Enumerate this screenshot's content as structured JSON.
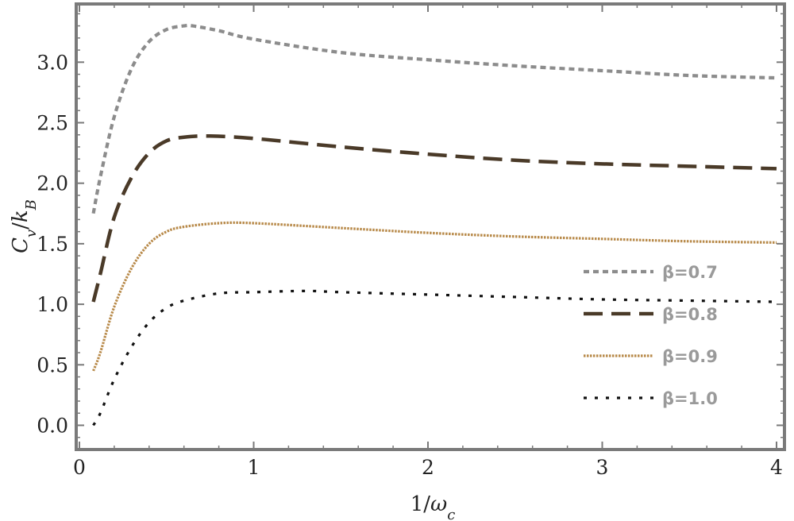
{
  "chart_data": {
    "type": "line",
    "xlabel": "1/ω_c",
    "ylabel": "C_v/k_B",
    "xlim": [
      0,
      4
    ],
    "ylim": [
      -0.15,
      3.45
    ],
    "x_ticks": [
      "0",
      "1",
      "2",
      "3",
      "4"
    ],
    "y_ticks": [
      "0.0",
      "0.5",
      "1.0",
      "1.5",
      "2.0",
      "2.5",
      "3.0"
    ],
    "grid": false,
    "legend_position": "right-center",
    "series": [
      {
        "name": "β=0.7",
        "color": "#8c8c8c",
        "dash": "short-dash",
        "x": [
          0.08,
          0.12,
          0.2,
          0.3,
          0.4,
          0.5,
          0.6,
          0.65,
          0.8,
          1.0,
          1.5,
          2.0,
          2.5,
          3.0,
          3.5,
          4.0
        ],
        "y": [
          1.75,
          2.05,
          2.55,
          2.95,
          3.17,
          3.27,
          3.3,
          3.3,
          3.26,
          3.19,
          3.08,
          3.02,
          2.97,
          2.93,
          2.89,
          2.87
        ]
      },
      {
        "name": "β=0.8",
        "color": "#4a3a28",
        "dash": "long-dash",
        "x": [
          0.08,
          0.12,
          0.2,
          0.3,
          0.4,
          0.5,
          0.6,
          0.75,
          1.0,
          1.5,
          2.0,
          2.5,
          3.0,
          3.5,
          4.0
        ],
        "y": [
          1.02,
          1.25,
          1.72,
          2.05,
          2.25,
          2.35,
          2.38,
          2.39,
          2.37,
          2.3,
          2.24,
          2.19,
          2.16,
          2.14,
          2.12
        ]
      },
      {
        "name": "β=0.9",
        "color": "#b88a4a",
        "dash": "dense-dots",
        "x": [
          0.08,
          0.12,
          0.2,
          0.3,
          0.4,
          0.5,
          0.6,
          0.8,
          1.0,
          1.5,
          2.0,
          2.5,
          3.0,
          3.5,
          4.0
        ],
        "y": [
          0.45,
          0.6,
          0.98,
          1.3,
          1.5,
          1.6,
          1.64,
          1.67,
          1.67,
          1.63,
          1.59,
          1.56,
          1.54,
          1.52,
          1.51
        ]
      },
      {
        "name": "β=1.0",
        "color": "#111111",
        "dash": "dots",
        "x": [
          0.08,
          0.12,
          0.2,
          0.3,
          0.4,
          0.5,
          0.6,
          0.8,
          1.0,
          1.3,
          1.5,
          2.0,
          2.5,
          3.0,
          3.5,
          4.0
        ],
        "y": [
          0.0,
          0.1,
          0.38,
          0.65,
          0.85,
          0.97,
          1.03,
          1.09,
          1.1,
          1.11,
          1.1,
          1.08,
          1.06,
          1.04,
          1.03,
          1.02
        ]
      }
    ]
  }
}
